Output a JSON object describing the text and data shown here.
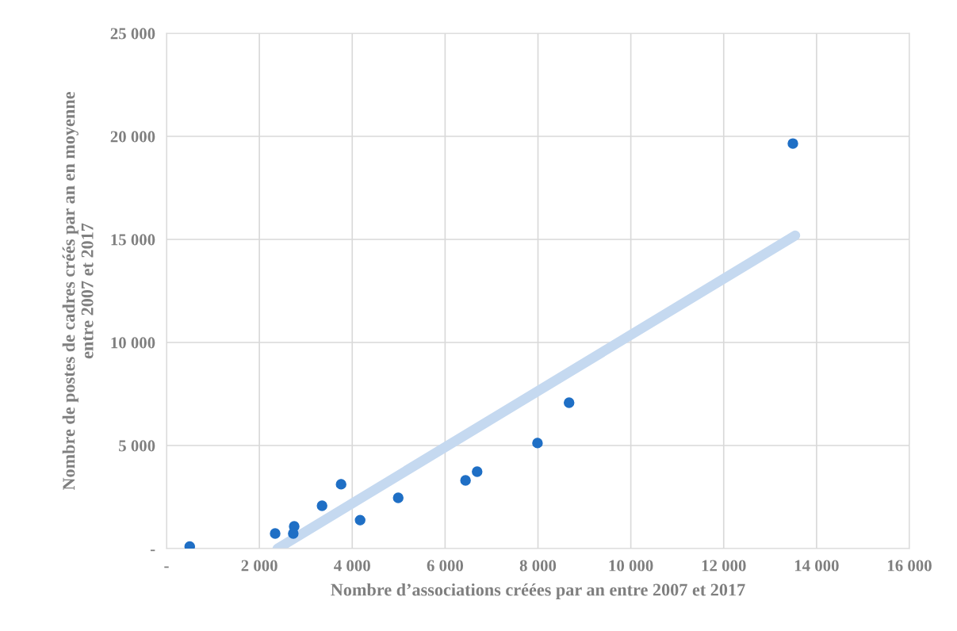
{
  "chart_data": {
    "type": "scatter",
    "xlabel": "Nombre d’associations créées par an entre 2007 et 2017",
    "ylabel": "Nombre de postes de cadres créés par an en moyenne\nentre 2007 et 2017",
    "series": [
      {
        "color": "#1f6fc5",
        "marker": "circle",
        "x": [
          500,
          2340,
          2750,
          2730,
          3350,
          3760,
          4170,
          4990,
          6440,
          6690,
          7990,
          8670,
          13490
        ],
        "values": [
          100,
          730,
          1080,
          730,
          2080,
          3120,
          1380,
          2460,
          3310,
          3730,
          5120,
          7080,
          19650
        ]
      },
      {
        "type": "line",
        "color": "#c5d9f0",
        "marker": "none",
        "x": [
          2390,
          13540
        ],
        "values": [
          0,
          15190
        ]
      }
    ],
    "xlim": [
      0,
      16000
    ],
    "ylim": [
      0,
      25000
    ],
    "xticks": [
      {
        "value": 0,
        "label": "-"
      },
      {
        "value": 2000,
        "label": "2 000"
      },
      {
        "value": 4000,
        "label": "4 000"
      },
      {
        "value": 6000,
        "label": "6 000"
      },
      {
        "value": 8000,
        "label": "8 000"
      },
      {
        "value": 10000,
        "label": "10 000"
      },
      {
        "value": 12000,
        "label": "12 000"
      },
      {
        "value": 14000,
        "label": "14 000"
      },
      {
        "value": 16000,
        "label": "16 000"
      }
    ],
    "yticks": [
      {
        "value": 0,
        "label": "-"
      },
      {
        "value": 5000,
        "label": "5 000"
      },
      {
        "value": 10000,
        "label": "10 000"
      },
      {
        "value": 15000,
        "label": "15 000"
      },
      {
        "value": 20000,
        "label": "20 000"
      },
      {
        "value": 25000,
        "label": "25 000"
      }
    ],
    "grid": true
  }
}
